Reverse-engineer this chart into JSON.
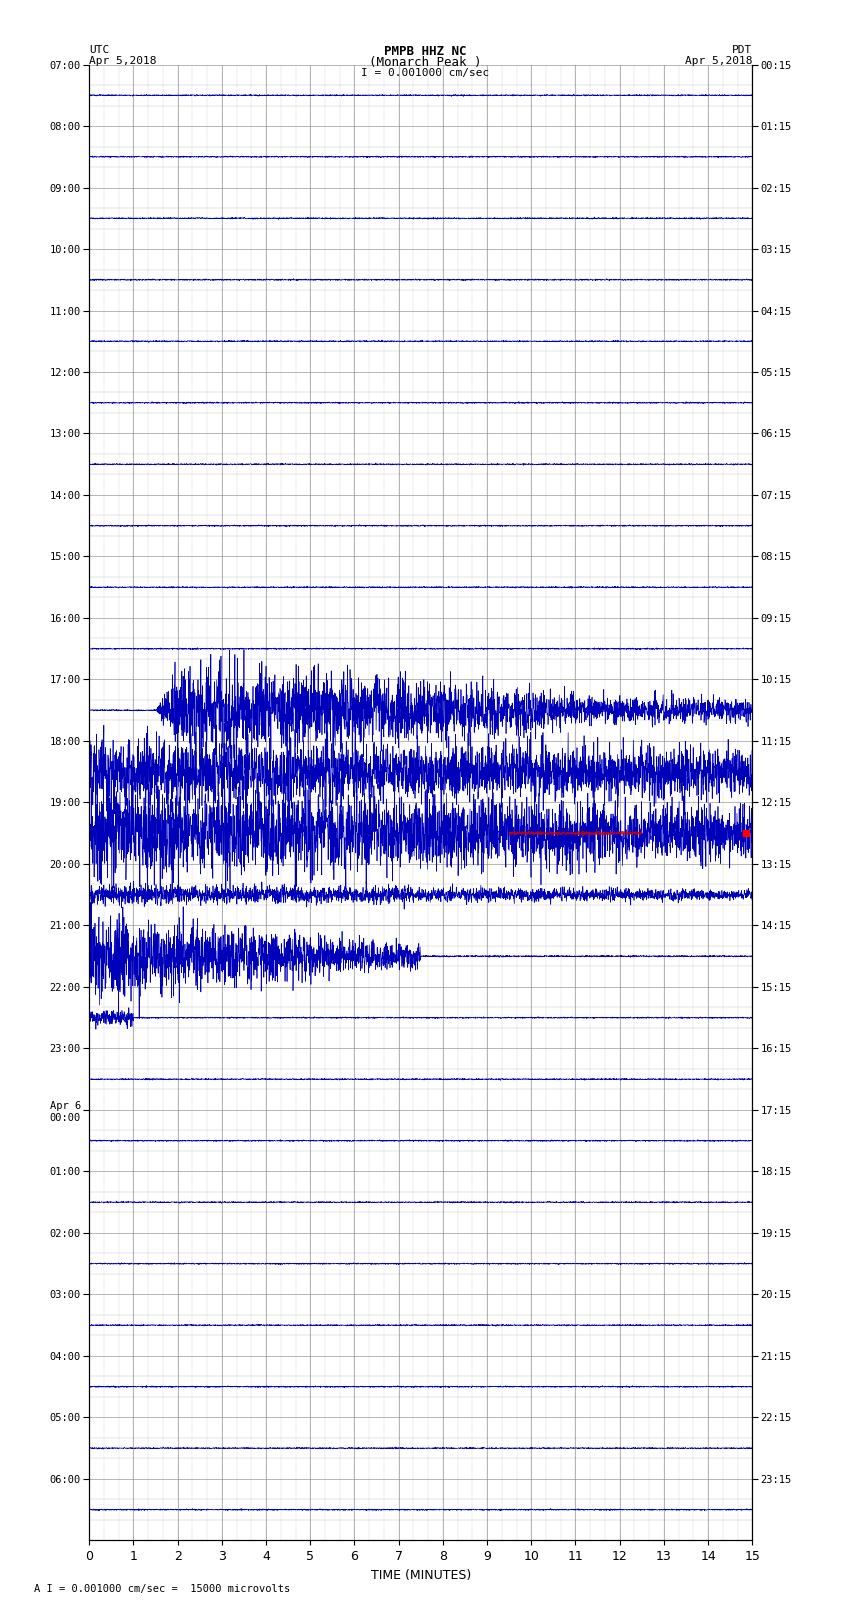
{
  "title_line1": "PMPB HHZ NC",
  "title_line2": "(Monarch Peak )",
  "scale_label": "I = 0.001000 cm/sec",
  "utc_label": "UTC",
  "utc_date": "Apr 5,2018",
  "pdt_label": "PDT",
  "pdt_date": "Apr 5,2018",
  "bottom_label": "A I = 0.001000 cm/sec =  15000 microvolts",
  "xlabel": "TIME (MINUTES)",
  "left_yticks": [
    "07:00",
    "08:00",
    "09:00",
    "10:00",
    "11:00",
    "12:00",
    "13:00",
    "14:00",
    "15:00",
    "16:00",
    "17:00",
    "18:00",
    "19:00",
    "20:00",
    "21:00",
    "22:00",
    "23:00",
    "Apr 6\n00:00",
    "01:00",
    "02:00",
    "03:00",
    "04:00",
    "05:00",
    "06:00"
  ],
  "right_yticks": [
    "00:15",
    "01:15",
    "02:15",
    "03:15",
    "04:15",
    "05:15",
    "06:15",
    "07:15",
    "08:15",
    "09:15",
    "10:15",
    "11:15",
    "12:15",
    "13:15",
    "14:15",
    "15:15",
    "16:15",
    "17:15",
    "18:15",
    "19:15",
    "20:15",
    "21:15",
    "22:15",
    "23:15"
  ],
  "num_rows": 24,
  "xlim": [
    0,
    15
  ],
  "background_color": "#ffffff",
  "grid_color": "#888888",
  "trace_color": "#0000bb",
  "red_signal_color": "#cc0000"
}
